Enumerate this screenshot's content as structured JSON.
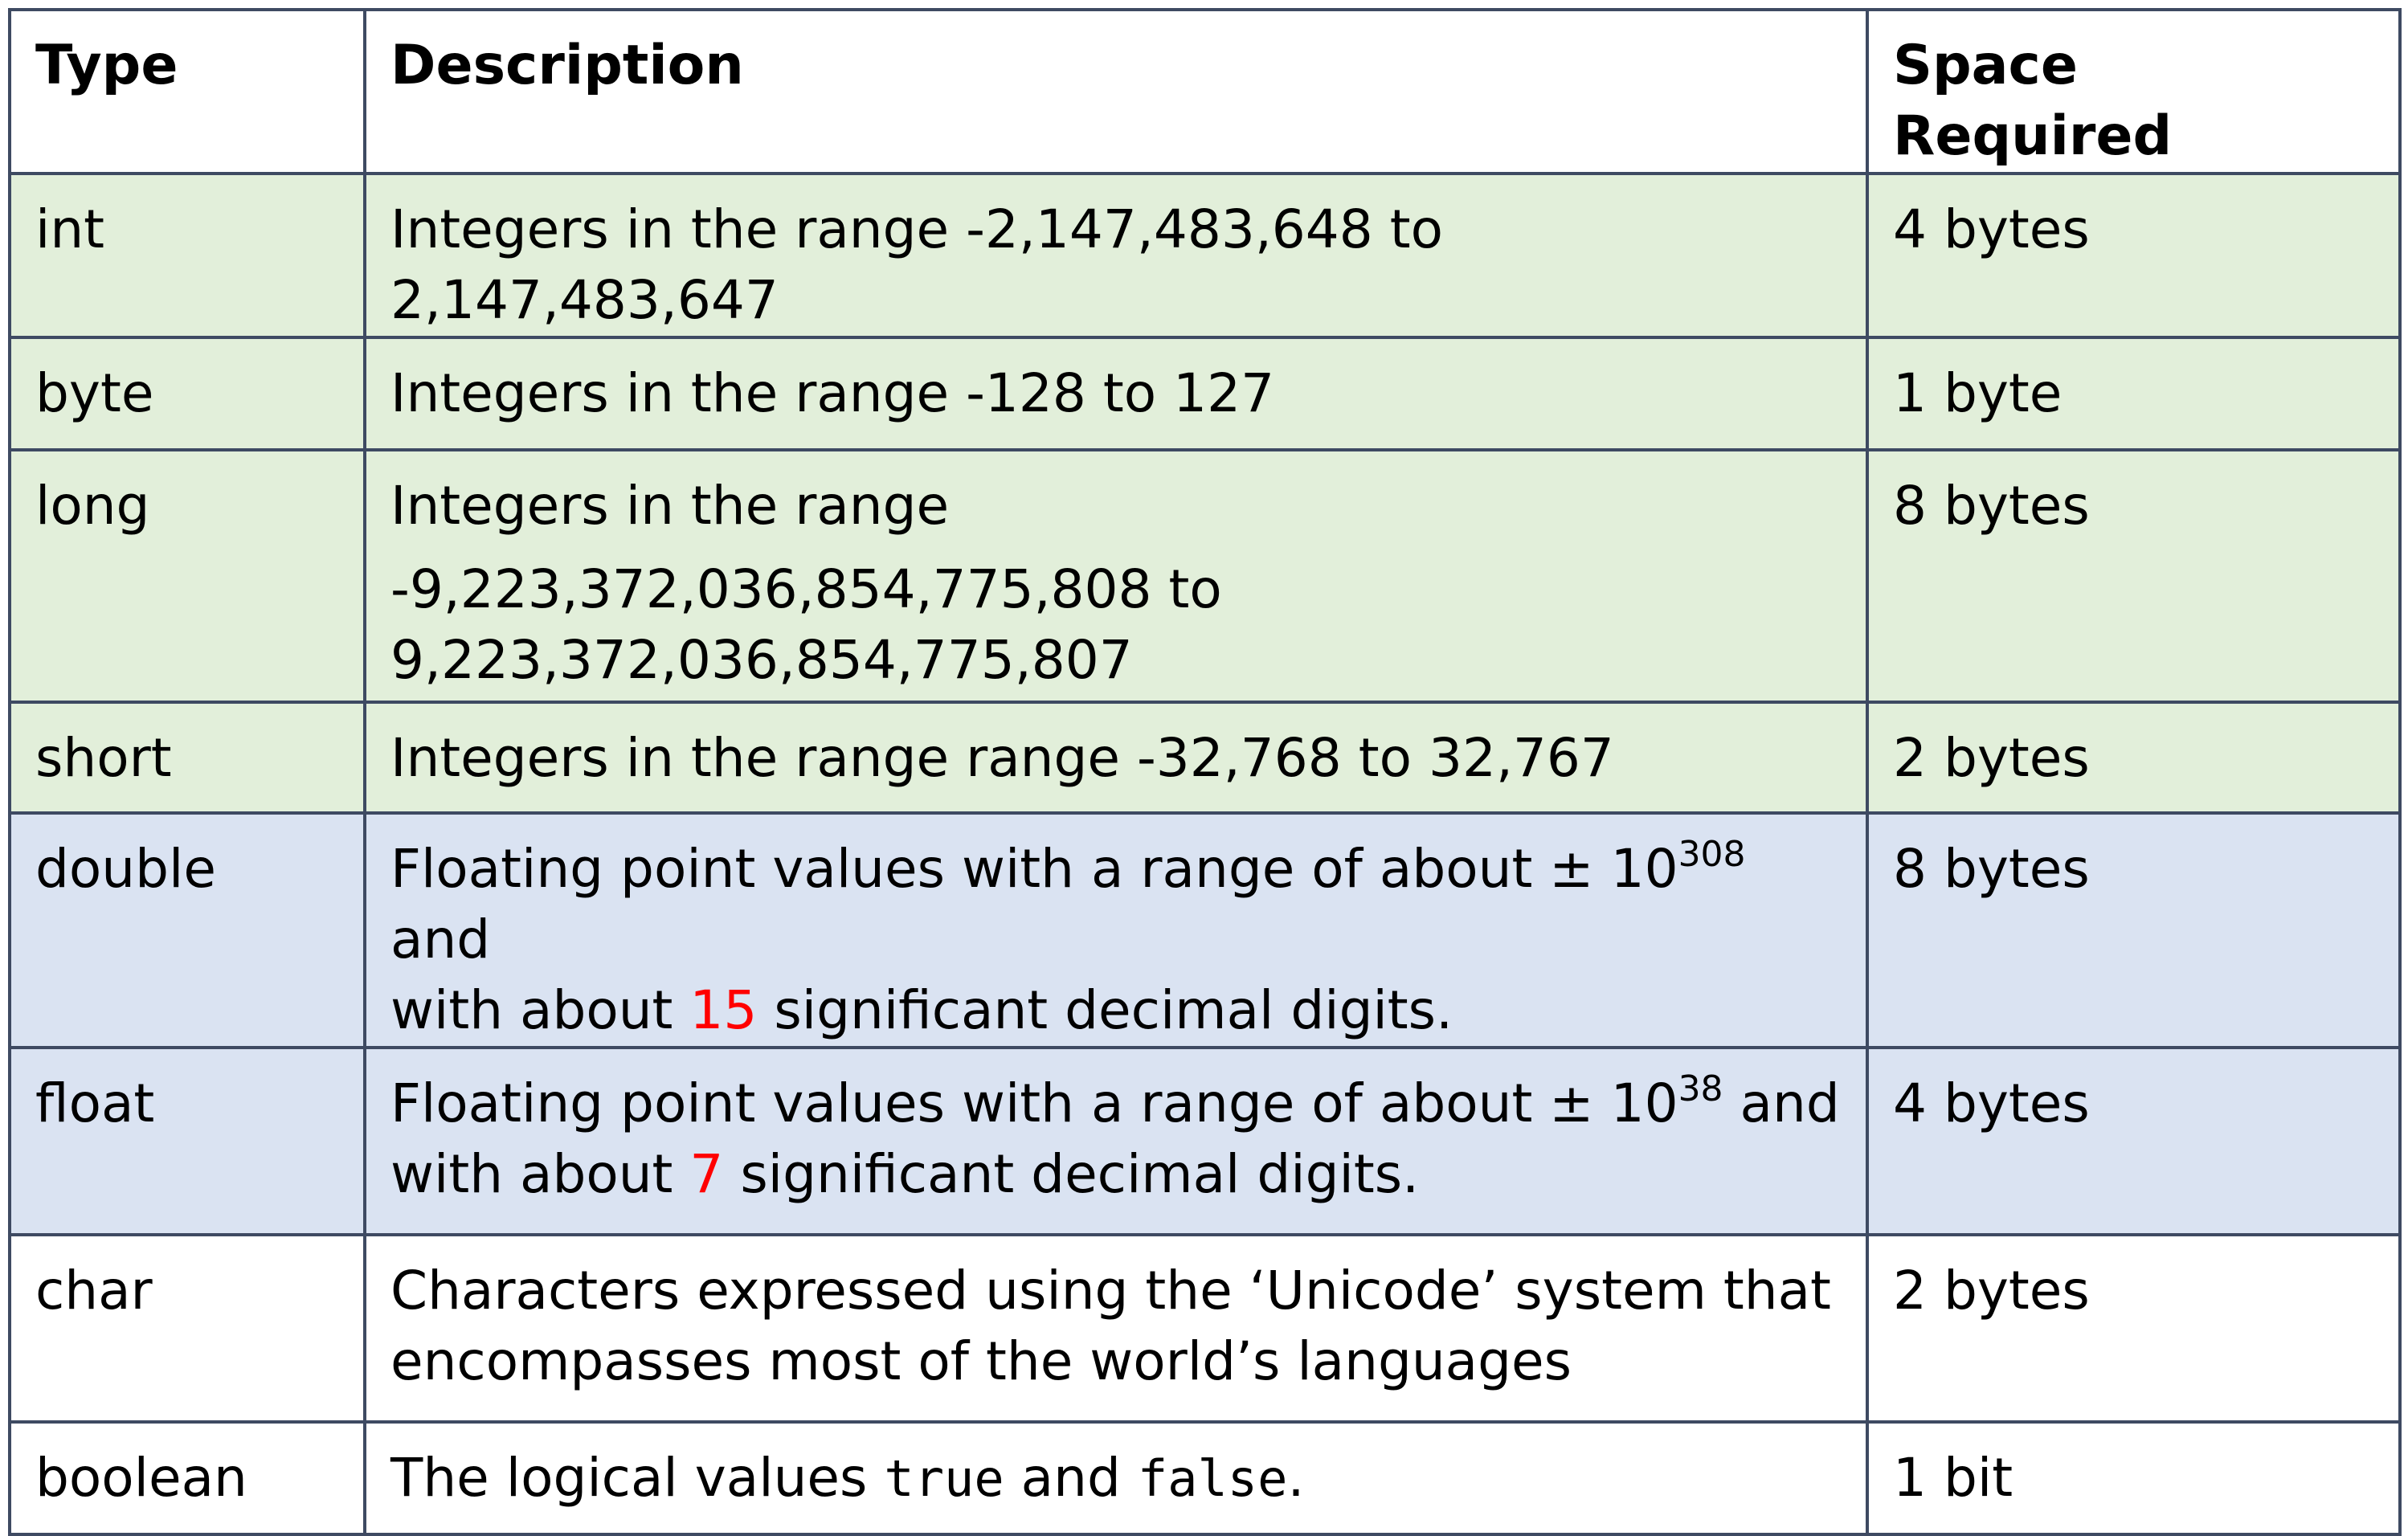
{
  "headers": {
    "type": "Type",
    "description": "Description",
    "space": "Space Required"
  },
  "rows": [
    {
      "type": "int",
      "description": "Integers in the range -2,147,483,648 to 2,147,483,647",
      "space": "4 bytes",
      "color": "#e2efda"
    },
    {
      "type": "byte",
      "description": "Integers in the range -128 to 127",
      "space": "1 byte",
      "color": "#e2efda"
    },
    {
      "type": "long",
      "description_line1": "Integers in the range",
      "description_line2": "-9,223,372,036,854,775,808 to",
      "description_line3": "9,223,372,036,854,775,807",
      "space": "8 bytes",
      "color": "#e2efda"
    },
    {
      "type": "short",
      "description": "Integers in the range range -32,768 to 32,767",
      "space": "2 bytes",
      "color": "#e2efda"
    },
    {
      "type": "double",
      "description_pre": "Floating point values with a range of about ± 10",
      "description_exp": "308",
      "description_mid": " and",
      "description_pre2": "with about ",
      "description_digits": "15",
      "description_post": " significant decimal digits.",
      "space": "8 bytes",
      "color": "#dae3f2"
    },
    {
      "type": "float",
      "description_pre": "Floating point values with a range of about ± 10",
      "description_exp": "38",
      "description_mid": " and",
      "description_pre2": "with about ",
      "description_digits": "7",
      "description_post": " significant decimal digits.",
      "space": "4 bytes",
      "color": "#dae3f2"
    },
    {
      "type": "char",
      "description_line1": "Characters expressed using the ‘Unicode’ system that",
      "description_line2": "encompasses most of the world’s languages",
      "space": "2 bytes",
      "color": "#ffffff"
    },
    {
      "type": "boolean",
      "description_pre": "The logical values ",
      "description_true": "true",
      "description_and": " and ",
      "description_false": "false",
      "description_end": ".",
      "space": "1 bit",
      "color": "#ffffff"
    }
  ],
  "colors": {
    "border": "#3e4a62",
    "integer_rows": "#e2efda",
    "floating_rows": "#dae3f2",
    "highlight_digits": "#ff0000"
  }
}
